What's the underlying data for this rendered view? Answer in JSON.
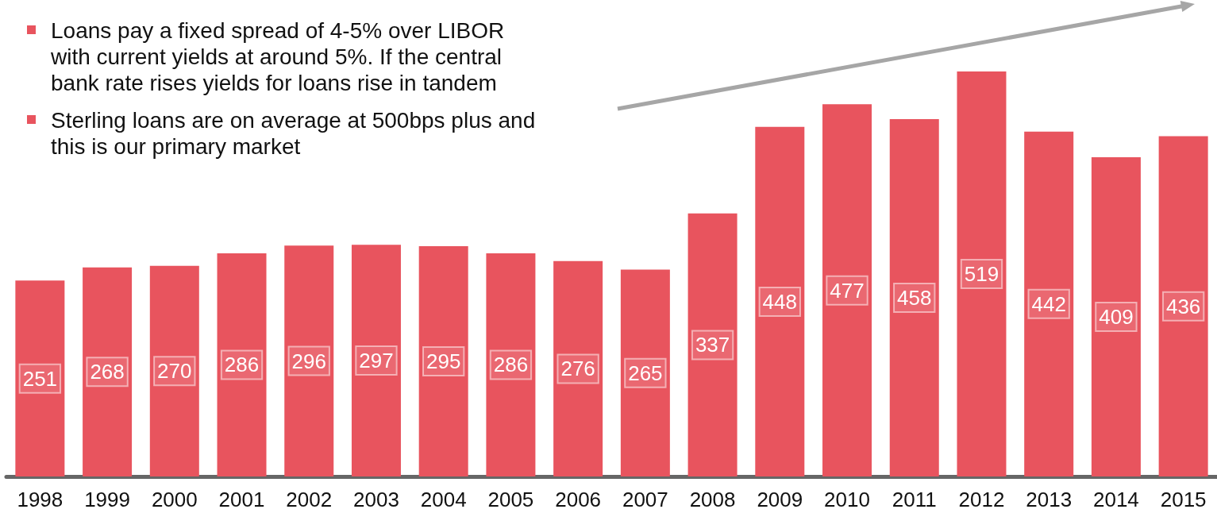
{
  "chart_data": {
    "type": "bar",
    "categories": [
      "1998",
      "1999",
      "2000",
      "2001",
      "2002",
      "2003",
      "2004",
      "2005",
      "2006",
      "2007",
      "2008",
      "2009",
      "2010",
      "2011",
      "2012",
      "2013",
      "2014",
      "2015"
    ],
    "values": [
      251,
      268,
      270,
      286,
      296,
      297,
      295,
      286,
      276,
      265,
      337,
      448,
      477,
      458,
      519,
      442,
      409,
      436
    ],
    "color": "#e8545e",
    "data_labels": true,
    "annotations": [
      "Loans pay a fixed spread of 4-5% over LIBOR with current yields at around 5%. If the central bank rate rises yields for loans rise in tandem",
      "Sterling loans are on average at 500bps plus  and this is our primary market"
    ]
  }
}
